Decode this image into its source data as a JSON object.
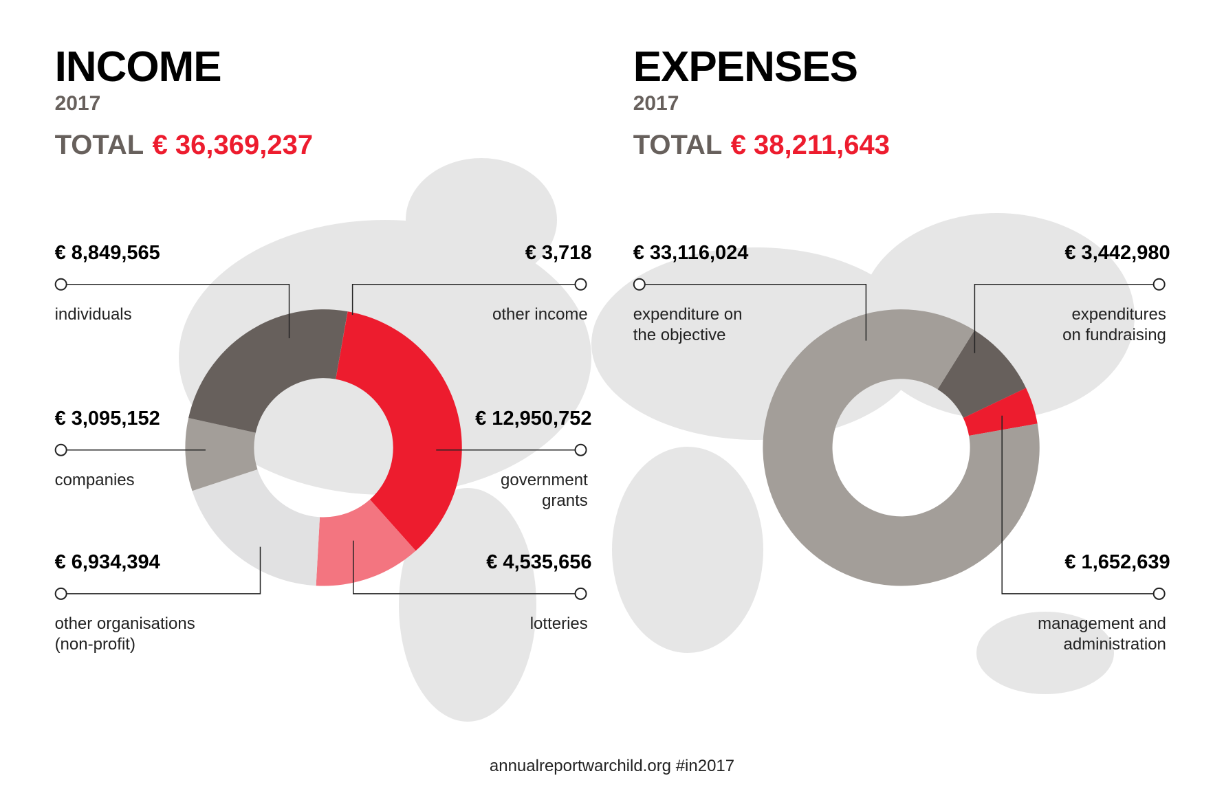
{
  "chart_data": [
    {
      "type": "donut",
      "title": "INCOME",
      "subtitle": "2017",
      "total_caption": "TOTAL",
      "total": {
        "value": 36369237,
        "label": "€ 36,369,237"
      },
      "categories": [
        "other income",
        "government\ngrants",
        "lotteries",
        "other organisations\n(non-profit)",
        "companies",
        "individuals"
      ],
      "values": [
        3718,
        12950752,
        4535656,
        6934394,
        3095152,
        8849565
      ],
      "value_labels": [
        "€ 3,718",
        "€ 12,950,752",
        "€ 4,535,656",
        "€ 6,934,394",
        "€ 3,095,152",
        "€ 8,849,565"
      ],
      "colors": [
        "#ffffff",
        "#ed1c2e",
        "#f37580",
        "#e1e1e2",
        "#a39e99",
        "#67605c"
      ]
    },
    {
      "type": "donut",
      "title": "EXPENSES",
      "subtitle": "2017",
      "total_caption": "TOTAL",
      "total": {
        "value": 38211643,
        "label": "€ 38,211,643"
      },
      "categories": [
        "expenditures\non fundraising",
        "management and\nadministration",
        "expenditure on\nthe objective"
      ],
      "values": [
        3442980,
        1652639,
        33116024
      ],
      "value_labels": [
        "€ 3,442,980",
        "€ 1,652,639",
        "€ 33,116,024"
      ],
      "colors": [
        "#67605c",
        "#ed1c2e",
        "#a39e99"
      ]
    }
  ],
  "footer": "annualreportwarchild.org #in2017"
}
